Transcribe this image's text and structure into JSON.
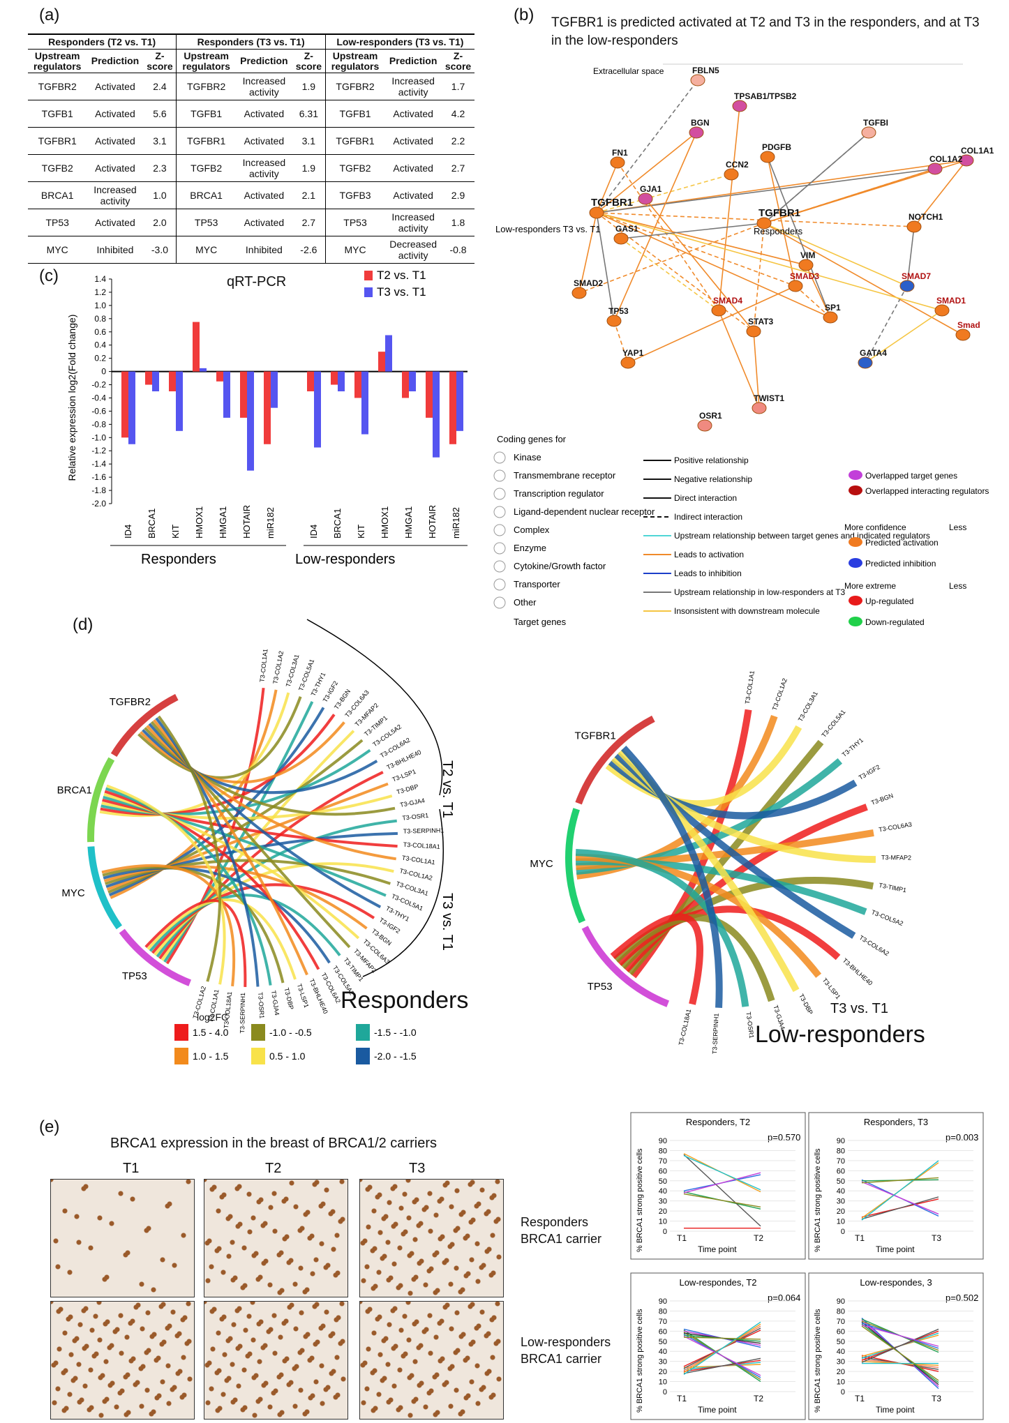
{
  "panels": {
    "a": "(a)",
    "b": "(b)",
    "c": "(c)",
    "d": "(d)",
    "e": "(e)"
  },
  "table": {
    "groups": [
      "Responders (T2 vs. T1)",
      "Responders (T3 vs. T1)",
      "Low-responders (T3 vs. T1)"
    ],
    "subheaders": [
      "Upstream regulators",
      "Prediction",
      "Z-score"
    ],
    "rows": [
      [
        "TGFBR2",
        "Activated",
        "2.4",
        "TGFBR2",
        "Increased activity",
        "1.9",
        "TGFBR2",
        "Increased activity",
        "1.7"
      ],
      [
        "TGFB1",
        "Activated",
        "5.6",
        "TGFB1",
        "Activated",
        "6.31",
        "TGFB1",
        "Activated",
        "4.2"
      ],
      [
        "TGFBR1",
        "Activated",
        "3.1",
        "TGFBR1",
        "Activated",
        "3.1",
        "TGFBR1",
        "Activated",
        "2.2"
      ],
      [
        "TGFB2",
        "Activated",
        "2.3",
        "TGFB2",
        "Increased activity",
        "1.9",
        "TGFB2",
        "Activated",
        "2.7"
      ],
      [
        "BRCA1",
        "Increased activity",
        "1.0",
        "BRCA1",
        "Activated",
        "2.1",
        "TGFB3",
        "Activated",
        "2.9"
      ],
      [
        "TP53",
        "Activated",
        "2.0",
        "TP53",
        "Activated",
        "2.7",
        "TP53",
        "Increased activity",
        "1.8"
      ],
      [
        "MYC",
        "Inhibited",
        "-3.0",
        "MYC",
        "Inhibited",
        "-2.6",
        "MYC",
        "Decreased activity",
        "-0.8"
      ]
    ]
  },
  "network": {
    "title": "TGFBR1 is predicted activated at T2 and T3 in the responders, and at T3 in the low-responders",
    "extracellular": "Extracellular space",
    "nodes": [
      "FBLN5",
      "TPSAB1/TPSB2",
      "BGN",
      "TGFBI",
      "FN1",
      "PDGFB",
      "CCN2",
      "COL1A1",
      "COL1A2",
      "GJA1",
      "TGFBR1",
      "TGFBR1",
      "GAS1",
      "NOTCH1",
      "VIM",
      "SMAD2",
      "SMAD3",
      "SMAD7",
      "SMAD1",
      "SMAD4",
      "TP53",
      "SP1",
      "STAT3",
      "Smad",
      "YAP1",
      "GATA4",
      "TWIST1",
      "OSR1"
    ],
    "tgfbr1_low_note": "Low-responders T3 vs. T1",
    "tgfbr1_resp_note": "Responders",
    "legend_left": [
      "Coding genes for",
      "Kinase",
      "Transmembrane receptor",
      "Transcription regulator",
      "Ligand-dependent nuclear receptor",
      "Complex",
      "Enzyme",
      "Cytokine/Growth factor",
      "Transporter",
      "Other",
      "Target genes"
    ],
    "legend_mid": [
      "Positive relationship",
      "Negative relationship",
      "Direct interaction",
      "Indirect interaction",
      "Upstream relationship between target genes and indicated regulators",
      "Leads to activation",
      "Leads to inhibition",
      "Upstream relationship in low-responders at T3",
      "Insonsistent with downstream molecule"
    ],
    "legend_right": [
      "Overlapped target genes",
      "Overlapped interacting regulators",
      "More confidence",
      "Less",
      "Predicted activation",
      "Predicted inhibition",
      "More extreme",
      "Less",
      "Up-regulated",
      "Down-regulated"
    ]
  },
  "chart_data": {
    "type": "bar",
    "title": "qRT-PCR",
    "ylabel": "Relative expression log2(Fold change)",
    "ylim": [
      -2.0,
      1.4
    ],
    "yticks": [
      "1.4",
      "1.2",
      "1.0",
      "0.8",
      "0.6",
      "0.4",
      "0.2",
      "0",
      "-0.2",
      "-0.4",
      "-0.6",
      "-0.8",
      "-1.0",
      "-1.2",
      "-1.4",
      "-1.6",
      "-1.8",
      "-2.0"
    ],
    "categories": [
      "ID4",
      "BRCA1",
      "KIT",
      "HMOX1",
      "HMGA1",
      "HOTAIR",
      "miR182",
      "ID4",
      "BRCA1",
      "KIT",
      "HMOX1",
      "HMGA1",
      "HOTAIR",
      "miR182"
    ],
    "groups": [
      "Responders",
      "Low-responders"
    ],
    "series": [
      {
        "name": "T2 vs. T1",
        "color": "#f03b3b",
        "values": [
          -1.0,
          -0.2,
          -0.3,
          0.75,
          -0.15,
          -0.7,
          -1.1,
          -0.3,
          -0.2,
          -0.4,
          0.3,
          -0.4,
          -0.7,
          -1.1
        ]
      },
      {
        "name": "T3 vs. T1",
        "color": "#5555f0",
        "values": [
          -1.1,
          -0.3,
          -0.9,
          0.05,
          -0.7,
          -1.5,
          -0.55,
          -1.15,
          -0.3,
          -0.95,
          0.55,
          -0.3,
          -1.3,
          -0.9
        ]
      }
    ]
  },
  "chord": {
    "left_regulators": [
      "TP53",
      "MYC",
      "BRCA1",
      "TGFBR2"
    ],
    "left_arc1": "T2 vs. T1",
    "left_arc2": "T3 vs. T1",
    "left_caption": "Responders",
    "right_regulators": [
      "TP53",
      "MYC",
      "TGFBR1"
    ],
    "right_genes": [
      "T3-COL1A1",
      "T3-COL1A2",
      "T3-COL3A1",
      "T3-COL5A1",
      "T3-THY1",
      "T3-IGF2",
      "T3-BGN",
      "T3-COL6A3",
      "T3-MFAP2",
      "T3-TIMP1",
      "T3-COL5A2",
      "T3-COL6A2",
      "T3-BHLHE40",
      "T3-LSP1",
      "T3-DBP",
      "T3-GJA4",
      "T3-OSR1",
      "T3-SERPINH1",
      "T3-COL18A1"
    ],
    "right_arc": "T3 vs. T1",
    "right_caption": "Low-responders",
    "legend_title": "log2FC",
    "legend": [
      {
        "label": "1.5 - 4.0",
        "color": "#ee1c1c"
      },
      {
        "label": "-1.0 - -0.5",
        "color": "#8a8a1e"
      },
      {
        "label": "-1.5 - -1.0",
        "color": "#1fa79a"
      },
      {
        "label": "1.0 - 1.5",
        "color": "#f28a1c"
      },
      {
        "label": "0.5 - 1.0",
        "color": "#f8e24a"
      },
      {
        "label": "-2.0 - -1.5",
        "color": "#1a5aa0"
      }
    ]
  },
  "ihc": {
    "title": "BRCA1 expression in the breast of BRCA1/2 carriers",
    "timepoints": [
      "T1",
      "T2",
      "T3"
    ],
    "rows": [
      "Responders BRCA1 carrier",
      "Low-responders BRCA1 carrier"
    ]
  },
  "mini_charts": [
    {
      "title": "Responders, T2",
      "p": "p=0.570",
      "x": [
        "T1",
        "T2"
      ]
    },
    {
      "title": "Responders, T3",
      "p": "p=0.003",
      "x": [
        "T1",
        "T3"
      ]
    },
    {
      "title": "Low-respondes, T2",
      "p": "p=0.064",
      "x": [
        "T1",
        "T2"
      ]
    },
    {
      "title": "Low-respondes, 3",
      "p": "p=0.502",
      "x": [
        "T1",
        "T3"
      ]
    }
  ],
  "mini_ylabel": "% BRCA1 strong positive cells",
  "mini_xlabel": "Time point",
  "mini_yticks": [
    "90",
    "80",
    "70",
    "60",
    "50",
    "40",
    "30",
    "20",
    "10",
    "0"
  ]
}
